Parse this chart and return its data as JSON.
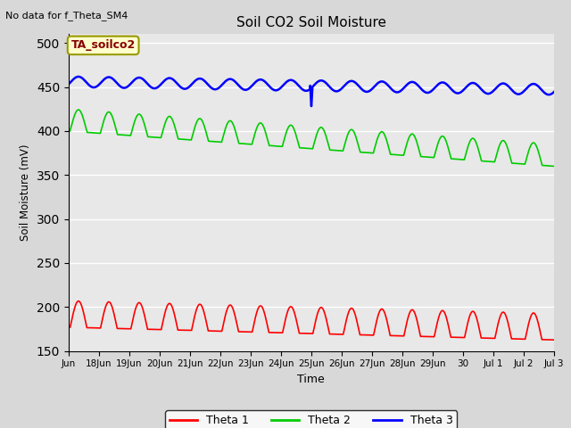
{
  "title": "Soil CO2 Soil Moisture",
  "ylabel": "Soil Moisture (mV)",
  "xlabel": "Time",
  "top_left_text": "No data for f_Theta_SM4",
  "annotation_box": "TA_soilco2",
  "ylim": [
    150,
    510
  ],
  "yticks": [
    150,
    200,
    250,
    300,
    350,
    400,
    450,
    500
  ],
  "xtick_positions": [
    0,
    1,
    2,
    3,
    4,
    5,
    6,
    7,
    8,
    9,
    10,
    11,
    12,
    13,
    14,
    15,
    16
  ],
  "xtick_labels": [
    "Jun",
    "18Jun",
    "19Jun",
    "20Jun",
    "21Jun",
    "22Jun",
    "23Jun",
    "24Jun",
    "25Jun",
    "26Jun",
    "27Jun",
    "28Jun",
    "29Jun",
    "30",
    "Jul 1",
    "Jul 2",
    "Jul 3"
  ],
  "ax_facecolor": "#e8e8e8",
  "fig_facecolor": "#d8d8d8",
  "line_colors": {
    "theta1": "#ff0000",
    "theta2": "#00cc00",
    "theta3": "#0000ff"
  },
  "legend_labels": [
    "Theta 1",
    "Theta 2",
    "Theta 3"
  ],
  "grid_color": "#ffffff",
  "annotation_facecolor": "#ffffcc",
  "annotation_edgecolor": "#999900",
  "annotation_textcolor": "#880000"
}
